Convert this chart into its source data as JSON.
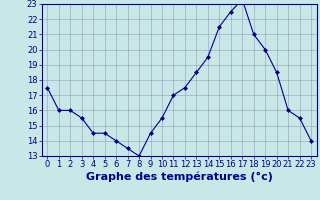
{
  "x": [
    0,
    1,
    2,
    3,
    4,
    5,
    6,
    7,
    8,
    9,
    10,
    11,
    12,
    13,
    14,
    15,
    16,
    17,
    18,
    19,
    20,
    21,
    22,
    23
  ],
  "y": [
    17.5,
    16.0,
    16.0,
    15.5,
    14.5,
    14.5,
    14.0,
    13.5,
    13.0,
    14.5,
    15.5,
    17.0,
    17.5,
    18.5,
    19.5,
    21.5,
    22.5,
    23.3,
    21.0,
    20.0,
    18.5,
    16.0,
    15.5,
    14.0
  ],
  "xlim": [
    -0.5,
    23.5
  ],
  "ylim": [
    13,
    23
  ],
  "yticks": [
    13,
    14,
    15,
    16,
    17,
    18,
    19,
    20,
    21,
    22,
    23
  ],
  "xticks": [
    0,
    1,
    2,
    3,
    4,
    5,
    6,
    7,
    8,
    9,
    10,
    11,
    12,
    13,
    14,
    15,
    16,
    17,
    18,
    19,
    20,
    21,
    22,
    23
  ],
  "xlabel": "Graphe des températures (°c)",
  "line_color": "#00008b",
  "marker": "D",
  "marker_size": 2,
  "bg_color": "#c8e8e8",
  "grid_color": "#9999bb",
  "axis_label_color": "#00008b",
  "tick_color": "#00008b",
  "tick_fontsize": 6,
  "xlabel_fontsize": 8
}
